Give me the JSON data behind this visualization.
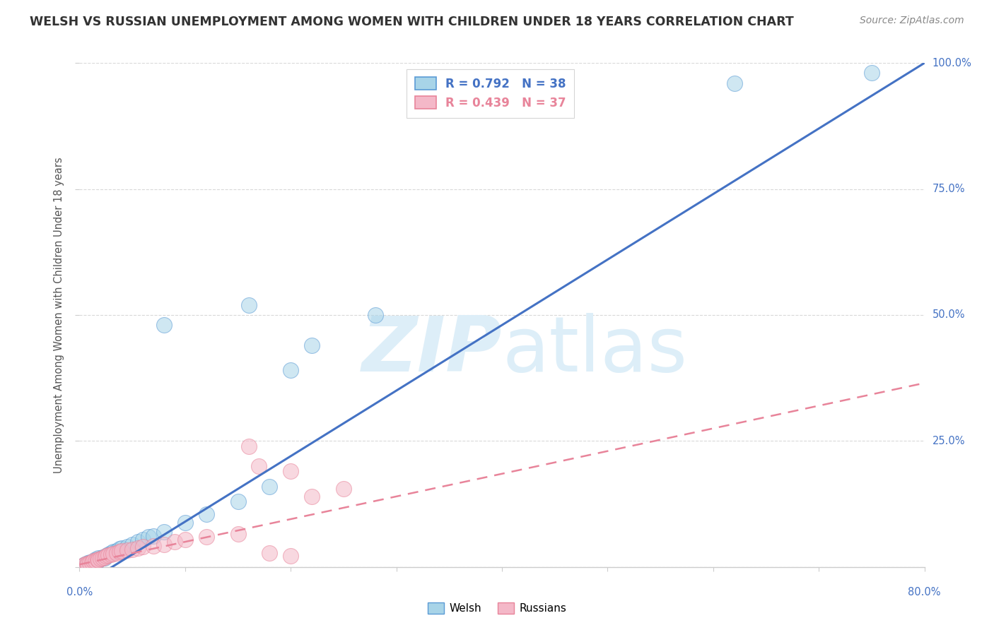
{
  "title": "WELSH VS RUSSIAN UNEMPLOYMENT AMONG WOMEN WITH CHILDREN UNDER 18 YEARS CORRELATION CHART",
  "source": "Source: ZipAtlas.com",
  "ylabel": "Unemployment Among Women with Children Under 18 years",
  "xmin": 0.0,
  "xmax": 0.8,
  "ymin": 0.0,
  "ymax": 1.0,
  "welsh_R": 0.792,
  "welsh_N": 38,
  "russian_R": 0.439,
  "russian_N": 37,
  "welsh_color": "#a8d4e8",
  "russian_color": "#f4b8c8",
  "welsh_edge_color": "#5b9bd5",
  "russian_edge_color": "#e8849a",
  "welsh_line_color": "#4472c4",
  "russian_line_color": "#e8849a",
  "tick_label_color": "#4472c4",
  "watermark_color": "#ddeef8",
  "grid_color": "#d0d0d0",
  "bg_color": "#ffffff",
  "welsh_scatter": [
    [
      0.003,
      0.003
    ],
    [
      0.005,
      0.006
    ],
    [
      0.007,
      0.004
    ],
    [
      0.008,
      0.008
    ],
    [
      0.01,
      0.01
    ],
    [
      0.012,
      0.008
    ],
    [
      0.014,
      0.012
    ],
    [
      0.015,
      0.015
    ],
    [
      0.017,
      0.013
    ],
    [
      0.018,
      0.018
    ],
    [
      0.02,
      0.016
    ],
    [
      0.022,
      0.02
    ],
    [
      0.024,
      0.018
    ],
    [
      0.025,
      0.022
    ],
    [
      0.027,
      0.025
    ],
    [
      0.03,
      0.028
    ],
    [
      0.032,
      0.03
    ],
    [
      0.035,
      0.032
    ],
    [
      0.038,
      0.036
    ],
    [
      0.04,
      0.038
    ],
    [
      0.045,
      0.04
    ],
    [
      0.05,
      0.045
    ],
    [
      0.055,
      0.05
    ],
    [
      0.06,
      0.055
    ],
    [
      0.065,
      0.06
    ],
    [
      0.07,
      0.062
    ],
    [
      0.08,
      0.07
    ],
    [
      0.1,
      0.088
    ],
    [
      0.12,
      0.105
    ],
    [
      0.15,
      0.13
    ],
    [
      0.18,
      0.16
    ],
    [
      0.08,
      0.48
    ],
    [
      0.16,
      0.52
    ],
    [
      0.22,
      0.44
    ],
    [
      0.28,
      0.5
    ],
    [
      0.2,
      0.39
    ],
    [
      0.62,
      0.96
    ],
    [
      0.75,
      0.98
    ]
  ],
  "russian_scatter": [
    [
      0.003,
      0.003
    ],
    [
      0.005,
      0.005
    ],
    [
      0.007,
      0.007
    ],
    [
      0.008,
      0.006
    ],
    [
      0.01,
      0.008
    ],
    [
      0.012,
      0.01
    ],
    [
      0.013,
      0.012
    ],
    [
      0.015,
      0.013
    ],
    [
      0.017,
      0.015
    ],
    [
      0.018,
      0.014
    ],
    [
      0.02,
      0.016
    ],
    [
      0.022,
      0.018
    ],
    [
      0.024,
      0.02
    ],
    [
      0.025,
      0.022
    ],
    [
      0.027,
      0.023
    ],
    [
      0.03,
      0.025
    ],
    [
      0.032,
      0.027
    ],
    [
      0.035,
      0.028
    ],
    [
      0.038,
      0.03
    ],
    [
      0.04,
      0.032
    ],
    [
      0.045,
      0.033
    ],
    [
      0.05,
      0.035
    ],
    [
      0.055,
      0.038
    ],
    [
      0.06,
      0.04
    ],
    [
      0.07,
      0.042
    ],
    [
      0.08,
      0.045
    ],
    [
      0.09,
      0.05
    ],
    [
      0.1,
      0.055
    ],
    [
      0.12,
      0.06
    ],
    [
      0.15,
      0.065
    ],
    [
      0.17,
      0.2
    ],
    [
      0.2,
      0.19
    ],
    [
      0.18,
      0.028
    ],
    [
      0.22,
      0.14
    ],
    [
      0.25,
      0.155
    ],
    [
      0.2,
      0.022
    ],
    [
      0.16,
      0.24
    ]
  ],
  "welsh_slope": 1.3,
  "welsh_intercept": -0.04,
  "russian_slope": 0.45,
  "russian_intercept": 0.005
}
